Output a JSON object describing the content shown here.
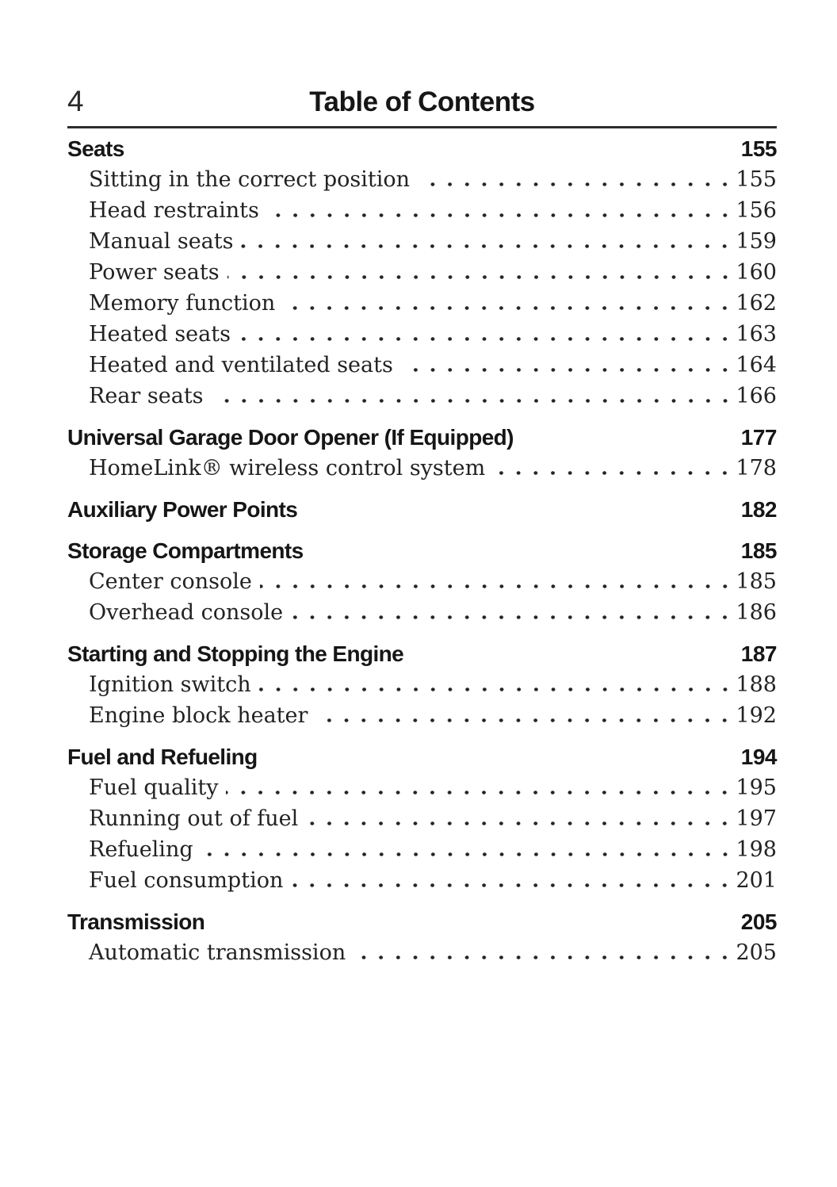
{
  "page": {
    "number": "4",
    "title": "Table of Contents"
  },
  "colors": {
    "text": "#1a1a1a",
    "rule": "#2d2d2d",
    "background": "#ffffff"
  },
  "toc": {
    "sections": [
      {
        "title": "Seats",
        "page": "155",
        "entries": [
          {
            "label": "Sitting in the correct position",
            "page": "155"
          },
          {
            "label": "Head restraints",
            "page": "156"
          },
          {
            "label": "Manual seats",
            "page": "159"
          },
          {
            "label": "Power seats",
            "page": "160"
          },
          {
            "label": "Memory function",
            "page": "162"
          },
          {
            "label": "Heated seats",
            "page": "163"
          },
          {
            "label": "Heated and ventilated seats",
            "page": "164"
          },
          {
            "label": "Rear seats",
            "page": "166"
          }
        ]
      },
      {
        "title": "Universal Garage Door Opener (If Equipped)",
        "page": "177",
        "entries": [
          {
            "label": "HomeLink® wireless control system",
            "page": "178"
          }
        ]
      },
      {
        "title": "Auxiliary Power Points",
        "page": "182",
        "entries": []
      },
      {
        "title": "Storage Compartments",
        "page": "185",
        "entries": [
          {
            "label": "Center console",
            "page": "185"
          },
          {
            "label": "Overhead console",
            "page": "186"
          }
        ]
      },
      {
        "title": "Starting and Stopping the Engine",
        "page": "187",
        "entries": [
          {
            "label": "Ignition switch",
            "page": "188"
          },
          {
            "label": "Engine block heater",
            "page": "192"
          }
        ]
      },
      {
        "title": "Fuel and Refueling",
        "page": "194",
        "entries": [
          {
            "label": "Fuel quality",
            "page": "195"
          },
          {
            "label": "Running out of fuel",
            "page": "197"
          },
          {
            "label": "Refueling",
            "page": "198"
          },
          {
            "label": "Fuel consumption",
            "page": "201"
          }
        ]
      },
      {
        "title": "Transmission",
        "page": "205",
        "entries": [
          {
            "label": "Automatic transmission",
            "page": "205"
          }
        ]
      }
    ]
  }
}
